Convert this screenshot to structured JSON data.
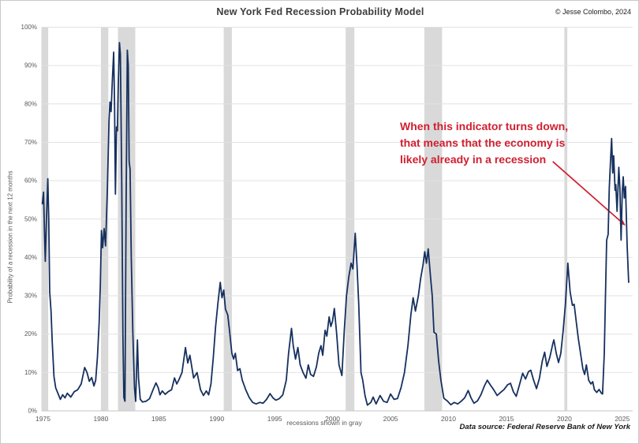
{
  "header": {
    "copyright": "© Jesse Colombo, 2024"
  },
  "annotation": {
    "color": "#cf2031",
    "lines": [
      "When this indicator turns down,",
      "that means that the economy is",
      "likely already in a recession"
    ],
    "arrow": {
      "from": [
        2019.0,
        65.0
      ],
      "to": [
        2025.2,
        48.5
      ]
    }
  },
  "footer": {
    "note": "recessions shown in gray",
    "source": "Data source: Federal Reserve Bank of New York"
  },
  "chart_data": {
    "type": "line",
    "title": "New York Fed Recession Probability Model",
    "xlabel": "",
    "ylabel": "Probability of a recession in the next 12 months",
    "xlim": [
      1974.9,
      2025.9
    ],
    "ylim": [
      0,
      100
    ],
    "grid": true,
    "x_ticks": [
      1975,
      1980,
      1985,
      1990,
      1995,
      2000,
      2005,
      2010,
      2015,
      2020,
      2025
    ],
    "y_ticks": [
      0,
      10,
      20,
      30,
      40,
      50,
      60,
      70,
      80,
      90,
      100
    ],
    "line_color": "#16305f",
    "recession_color": "#d9d9d9",
    "recessions": [
      [
        1974.9,
        1975.45
      ],
      [
        1980.0,
        1980.64
      ],
      [
        1981.47,
        1982.97
      ],
      [
        1990.6,
        1991.3
      ],
      [
        2001.13,
        2001.88
      ],
      [
        2007.92,
        2009.45
      ],
      [
        2020.0,
        2020.25
      ]
    ],
    "series": [
      {
        "name": "Probability of recession in the next 12 months",
        "points": [
          [
            1974.95,
            54
          ],
          [
            1975.05,
            57
          ],
          [
            1975.15,
            44
          ],
          [
            1975.2,
            39
          ],
          [
            1975.3,
            50
          ],
          [
            1975.42,
            60.5
          ],
          [
            1975.5,
            50
          ],
          [
            1975.58,
            31
          ],
          [
            1975.7,
            26
          ],
          [
            1975.8,
            18
          ],
          [
            1975.95,
            9
          ],
          [
            1976.1,
            6
          ],
          [
            1976.3,
            4.5
          ],
          [
            1976.5,
            3
          ],
          [
            1976.7,
            4.2
          ],
          [
            1976.9,
            3.4
          ],
          [
            1977.1,
            4.6
          ],
          [
            1977.4,
            3.6
          ],
          [
            1977.7,
            5
          ],
          [
            1978.0,
            5.5
          ],
          [
            1978.3,
            7
          ],
          [
            1978.6,
            11.3
          ],
          [
            1978.8,
            10
          ],
          [
            1979.0,
            7.7
          ],
          [
            1979.2,
            8.7
          ],
          [
            1979.4,
            6.5
          ],
          [
            1979.55,
            8
          ],
          [
            1979.7,
            14
          ],
          [
            1979.85,
            23
          ],
          [
            1979.95,
            33
          ],
          [
            1980.05,
            47
          ],
          [
            1980.15,
            42.5
          ],
          [
            1980.28,
            47.5
          ],
          [
            1980.4,
            43
          ],
          [
            1980.55,
            57
          ],
          [
            1980.7,
            75.5
          ],
          [
            1980.78,
            80.5
          ],
          [
            1980.88,
            78
          ],
          [
            1981.0,
            87
          ],
          [
            1981.1,
            93.5
          ],
          [
            1981.18,
            80
          ],
          [
            1981.25,
            56.5
          ],
          [
            1981.35,
            74
          ],
          [
            1981.42,
            73
          ],
          [
            1981.5,
            85
          ],
          [
            1981.6,
            96
          ],
          [
            1981.68,
            93
          ],
          [
            1981.8,
            60
          ],
          [
            1981.9,
            20
          ],
          [
            1981.98,
            3.5
          ],
          [
            1982.08,
            2.5
          ],
          [
            1982.18,
            55
          ],
          [
            1982.28,
            94
          ],
          [
            1982.36,
            90
          ],
          [
            1982.44,
            65
          ],
          [
            1982.52,
            63
          ],
          [
            1982.62,
            40
          ],
          [
            1982.75,
            21
          ],
          [
            1982.9,
            6
          ],
          [
            1983.0,
            2.5
          ],
          [
            1983.15,
            18.5
          ],
          [
            1983.25,
            8.5
          ],
          [
            1983.4,
            3
          ],
          [
            1983.6,
            2.3
          ],
          [
            1983.9,
            2.5
          ],
          [
            1984.2,
            3.2
          ],
          [
            1984.5,
            5.5
          ],
          [
            1984.75,
            7.3
          ],
          [
            1984.95,
            6
          ],
          [
            1985.1,
            4.2
          ],
          [
            1985.3,
            5.2
          ],
          [
            1985.55,
            4.3
          ],
          [
            1985.8,
            5
          ],
          [
            1986.1,
            5.5
          ],
          [
            1986.35,
            8.6
          ],
          [
            1986.55,
            7
          ],
          [
            1986.75,
            8.2
          ],
          [
            1987.0,
            10
          ],
          [
            1987.3,
            16.5
          ],
          [
            1987.5,
            12.5
          ],
          [
            1987.68,
            14.5
          ],
          [
            1988.0,
            8.6
          ],
          [
            1988.3,
            10
          ],
          [
            1988.6,
            5.5
          ],
          [
            1988.85,
            4
          ],
          [
            1989.1,
            5.2
          ],
          [
            1989.3,
            4.2
          ],
          [
            1989.5,
            7
          ],
          [
            1989.7,
            14
          ],
          [
            1989.9,
            22
          ],
          [
            1990.1,
            28
          ],
          [
            1990.3,
            33.5
          ],
          [
            1990.45,
            29.5
          ],
          [
            1990.6,
            31.5
          ],
          [
            1990.75,
            26.5
          ],
          [
            1990.95,
            25
          ],
          [
            1991.1,
            21
          ],
          [
            1991.3,
            15
          ],
          [
            1991.45,
            13.5
          ],
          [
            1991.6,
            15
          ],
          [
            1991.8,
            10.5
          ],
          [
            1992.0,
            11
          ],
          [
            1992.2,
            8
          ],
          [
            1992.5,
            5.5
          ],
          [
            1992.8,
            3.5
          ],
          [
            1993.1,
            2.2
          ],
          [
            1993.4,
            1.8
          ],
          [
            1993.7,
            2.2
          ],
          [
            1994.0,
            2
          ],
          [
            1994.3,
            3
          ],
          [
            1994.6,
            4.5
          ],
          [
            1994.85,
            3.4
          ],
          [
            1995.1,
            2.8
          ],
          [
            1995.4,
            3.2
          ],
          [
            1995.7,
            4.2
          ],
          [
            1996.0,
            8
          ],
          [
            1996.2,
            15
          ],
          [
            1996.45,
            21.5
          ],
          [
            1996.6,
            17
          ],
          [
            1996.8,
            13.5
          ],
          [
            1997.0,
            16.5
          ],
          [
            1997.2,
            12
          ],
          [
            1997.45,
            10
          ],
          [
            1997.7,
            8.5
          ],
          [
            1997.9,
            12
          ],
          [
            1998.1,
            9.5
          ],
          [
            1998.35,
            9
          ],
          [
            1998.6,
            11.5
          ],
          [
            1998.8,
            15
          ],
          [
            1999.0,
            17
          ],
          [
            1999.15,
            14.5
          ],
          [
            1999.35,
            21
          ],
          [
            1999.5,
            19.5
          ],
          [
            1999.7,
            24.5
          ],
          [
            1999.85,
            22
          ],
          [
            2000.0,
            23.5
          ],
          [
            2000.15,
            26.7
          ],
          [
            2000.35,
            20
          ],
          [
            2000.55,
            12
          ],
          [
            2000.8,
            9.2
          ],
          [
            2001.0,
            20.5
          ],
          [
            2001.2,
            30
          ],
          [
            2001.4,
            35
          ],
          [
            2001.6,
            38.5
          ],
          [
            2001.75,
            37
          ],
          [
            2001.95,
            46.3
          ],
          [
            2002.1,
            38
          ],
          [
            2002.25,
            28
          ],
          [
            2002.45,
            10
          ],
          [
            2002.6,
            8
          ],
          [
            2002.8,
            4
          ],
          [
            2003.0,
            1.5
          ],
          [
            2003.3,
            2.2
          ],
          [
            2003.5,
            3.6
          ],
          [
            2003.75,
            1.8
          ],
          [
            2004.1,
            4
          ],
          [
            2004.4,
            2.5
          ],
          [
            2004.7,
            2.2
          ],
          [
            2005.0,
            4.4
          ],
          [
            2005.3,
            3
          ],
          [
            2005.6,
            3.2
          ],
          [
            2005.9,
            6
          ],
          [
            2006.2,
            10
          ],
          [
            2006.5,
            17
          ],
          [
            2006.75,
            25
          ],
          [
            2006.95,
            29.5
          ],
          [
            2007.15,
            26
          ],
          [
            2007.4,
            30
          ],
          [
            2007.6,
            34.5
          ],
          [
            2007.8,
            38
          ],
          [
            2007.95,
            41.5
          ],
          [
            2008.1,
            38.5
          ],
          [
            2008.25,
            42.2
          ],
          [
            2008.45,
            35
          ],
          [
            2008.6,
            30
          ],
          [
            2008.75,
            20.5
          ],
          [
            2008.95,
            20
          ],
          [
            2009.15,
            13
          ],
          [
            2009.35,
            8
          ],
          [
            2009.6,
            3.3
          ],
          [
            2009.9,
            2.6
          ],
          [
            2010.2,
            1.6
          ],
          [
            2010.5,
            2.2
          ],
          [
            2010.8,
            1.8
          ],
          [
            2011.1,
            2.5
          ],
          [
            2011.4,
            3.4
          ],
          [
            2011.7,
            5.3
          ],
          [
            2011.95,
            3.4
          ],
          [
            2012.2,
            2
          ],
          [
            2012.5,
            2.6
          ],
          [
            2012.8,
            4.2
          ],
          [
            2013.1,
            6.5
          ],
          [
            2013.35,
            8
          ],
          [
            2013.6,
            6.8
          ],
          [
            2013.9,
            5.5
          ],
          [
            2014.2,
            4
          ],
          [
            2014.5,
            4.8
          ],
          [
            2014.8,
            5.6
          ],
          [
            2015.1,
            6.8
          ],
          [
            2015.35,
            7.2
          ],
          [
            2015.6,
            5
          ],
          [
            2015.85,
            3.8
          ],
          [
            2016.1,
            6.5
          ],
          [
            2016.4,
            9.8
          ],
          [
            2016.65,
            8.3
          ],
          [
            2016.9,
            10.2
          ],
          [
            2017.1,
            10.6
          ],
          [
            2017.35,
            8
          ],
          [
            2017.6,
            5.8
          ],
          [
            2017.85,
            8.5
          ],
          [
            2018.1,
            13
          ],
          [
            2018.3,
            15.3
          ],
          [
            2018.5,
            11.6
          ],
          [
            2018.75,
            14
          ],
          [
            2019.0,
            17.5
          ],
          [
            2019.1,
            18.5
          ],
          [
            2019.3,
            15
          ],
          [
            2019.5,
            12.6
          ],
          [
            2019.7,
            15
          ],
          [
            2019.9,
            21
          ],
          [
            2020.1,
            28
          ],
          [
            2020.3,
            38.5
          ],
          [
            2020.5,
            31
          ],
          [
            2020.7,
            27.5
          ],
          [
            2020.85,
            27.8
          ],
          [
            2021.0,
            24
          ],
          [
            2021.2,
            19
          ],
          [
            2021.4,
            15
          ],
          [
            2021.6,
            11
          ],
          [
            2021.75,
            9.5
          ],
          [
            2021.9,
            12
          ],
          [
            2022.1,
            8
          ],
          [
            2022.3,
            7
          ],
          [
            2022.45,
            7.6
          ],
          [
            2022.6,
            5.5
          ],
          [
            2022.8,
            4.8
          ],
          [
            2023.0,
            5.6
          ],
          [
            2023.2,
            4.6
          ],
          [
            2023.3,
            4.4
          ],
          [
            2023.45,
            15
          ],
          [
            2023.55,
            30
          ],
          [
            2023.65,
            44.5
          ],
          [
            2023.78,
            46
          ],
          [
            2023.88,
            58
          ],
          [
            2024.0,
            66
          ],
          [
            2024.08,
            71
          ],
          [
            2024.18,
            62
          ],
          [
            2024.26,
            66.5
          ],
          [
            2024.38,
            57.5
          ],
          [
            2024.44,
            59
          ],
          [
            2024.55,
            52
          ],
          [
            2024.7,
            63.5
          ],
          [
            2024.8,
            58
          ],
          [
            2024.9,
            44.5
          ],
          [
            2025.0,
            57
          ],
          [
            2025.08,
            61
          ],
          [
            2025.18,
            55.5
          ],
          [
            2025.28,
            58.5
          ],
          [
            2025.42,
            43
          ],
          [
            2025.55,
            33.5
          ]
        ]
      }
    ]
  }
}
